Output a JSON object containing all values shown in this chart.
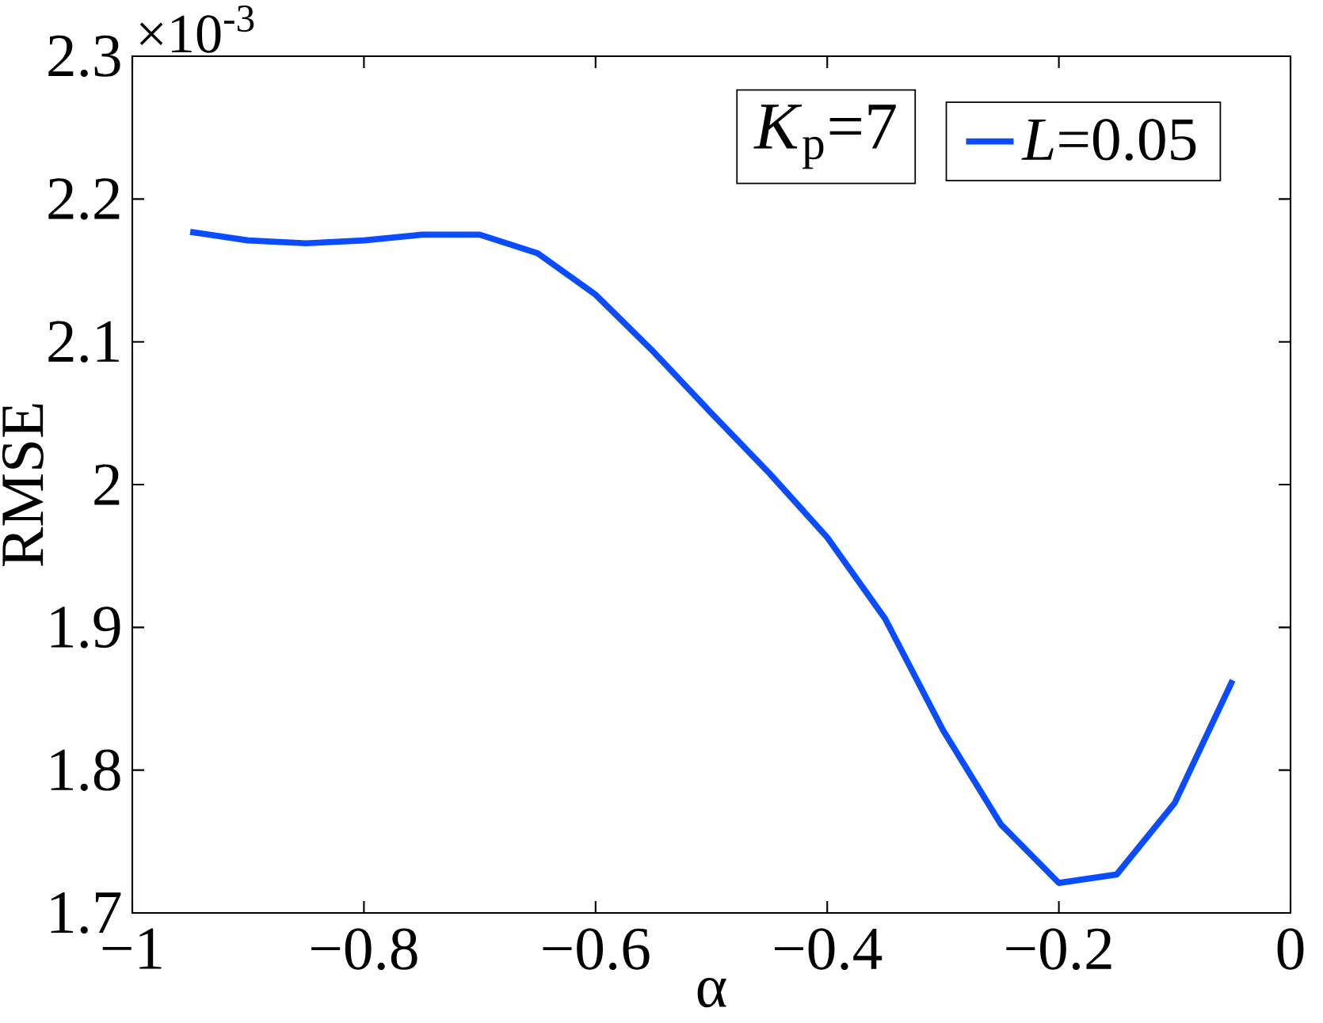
{
  "chart_data": {
    "type": "line",
    "xlabel": "α",
    "ylabel": "RMSE",
    "x": [
      -0.95,
      -0.9,
      -0.85,
      -0.8,
      -0.75,
      -0.7,
      -0.65,
      -0.6,
      -0.55,
      -0.5,
      -0.45,
      -0.4,
      -0.35,
      -0.3,
      -0.25,
      -0.2,
      -0.15,
      -0.1,
      -0.05
    ],
    "series": [
      {
        "name": "*L*=0.05",
        "color": "#0a4cff",
        "values": [
          2.177,
          2.171,
          2.169,
          2.171,
          2.175,
          2.175,
          2.162,
          2.133,
          2.093,
          2.05,
          2.008,
          1.963,
          1.906,
          1.828,
          1.762,
          1.721,
          1.727,
          1.777,
          1.863
        ]
      }
    ],
    "xlim": [
      -1,
      0
    ],
    "ylim": [
      1.7,
      2.3
    ],
    "xticks": [
      {
        "value": -1,
        "label": "−1"
      },
      {
        "value": -0.8,
        "label": "−0.8"
      },
      {
        "value": -0.6,
        "label": "−0.6"
      },
      {
        "value": -0.4,
        "label": "−0.4"
      },
      {
        "value": -0.2,
        "label": "−0.2"
      },
      0
    ],
    "yticks": [
      1.7,
      1.8,
      1.9,
      2,
      2.1,
      2.2,
      2.3
    ],
    "annotations": [
      "×10$^{-3}$",
      "*K*$_{p}$=7"
    ],
    "legend": "top right",
    "grid": false,
    "marker": "none",
    "line_style": "solid"
  }
}
